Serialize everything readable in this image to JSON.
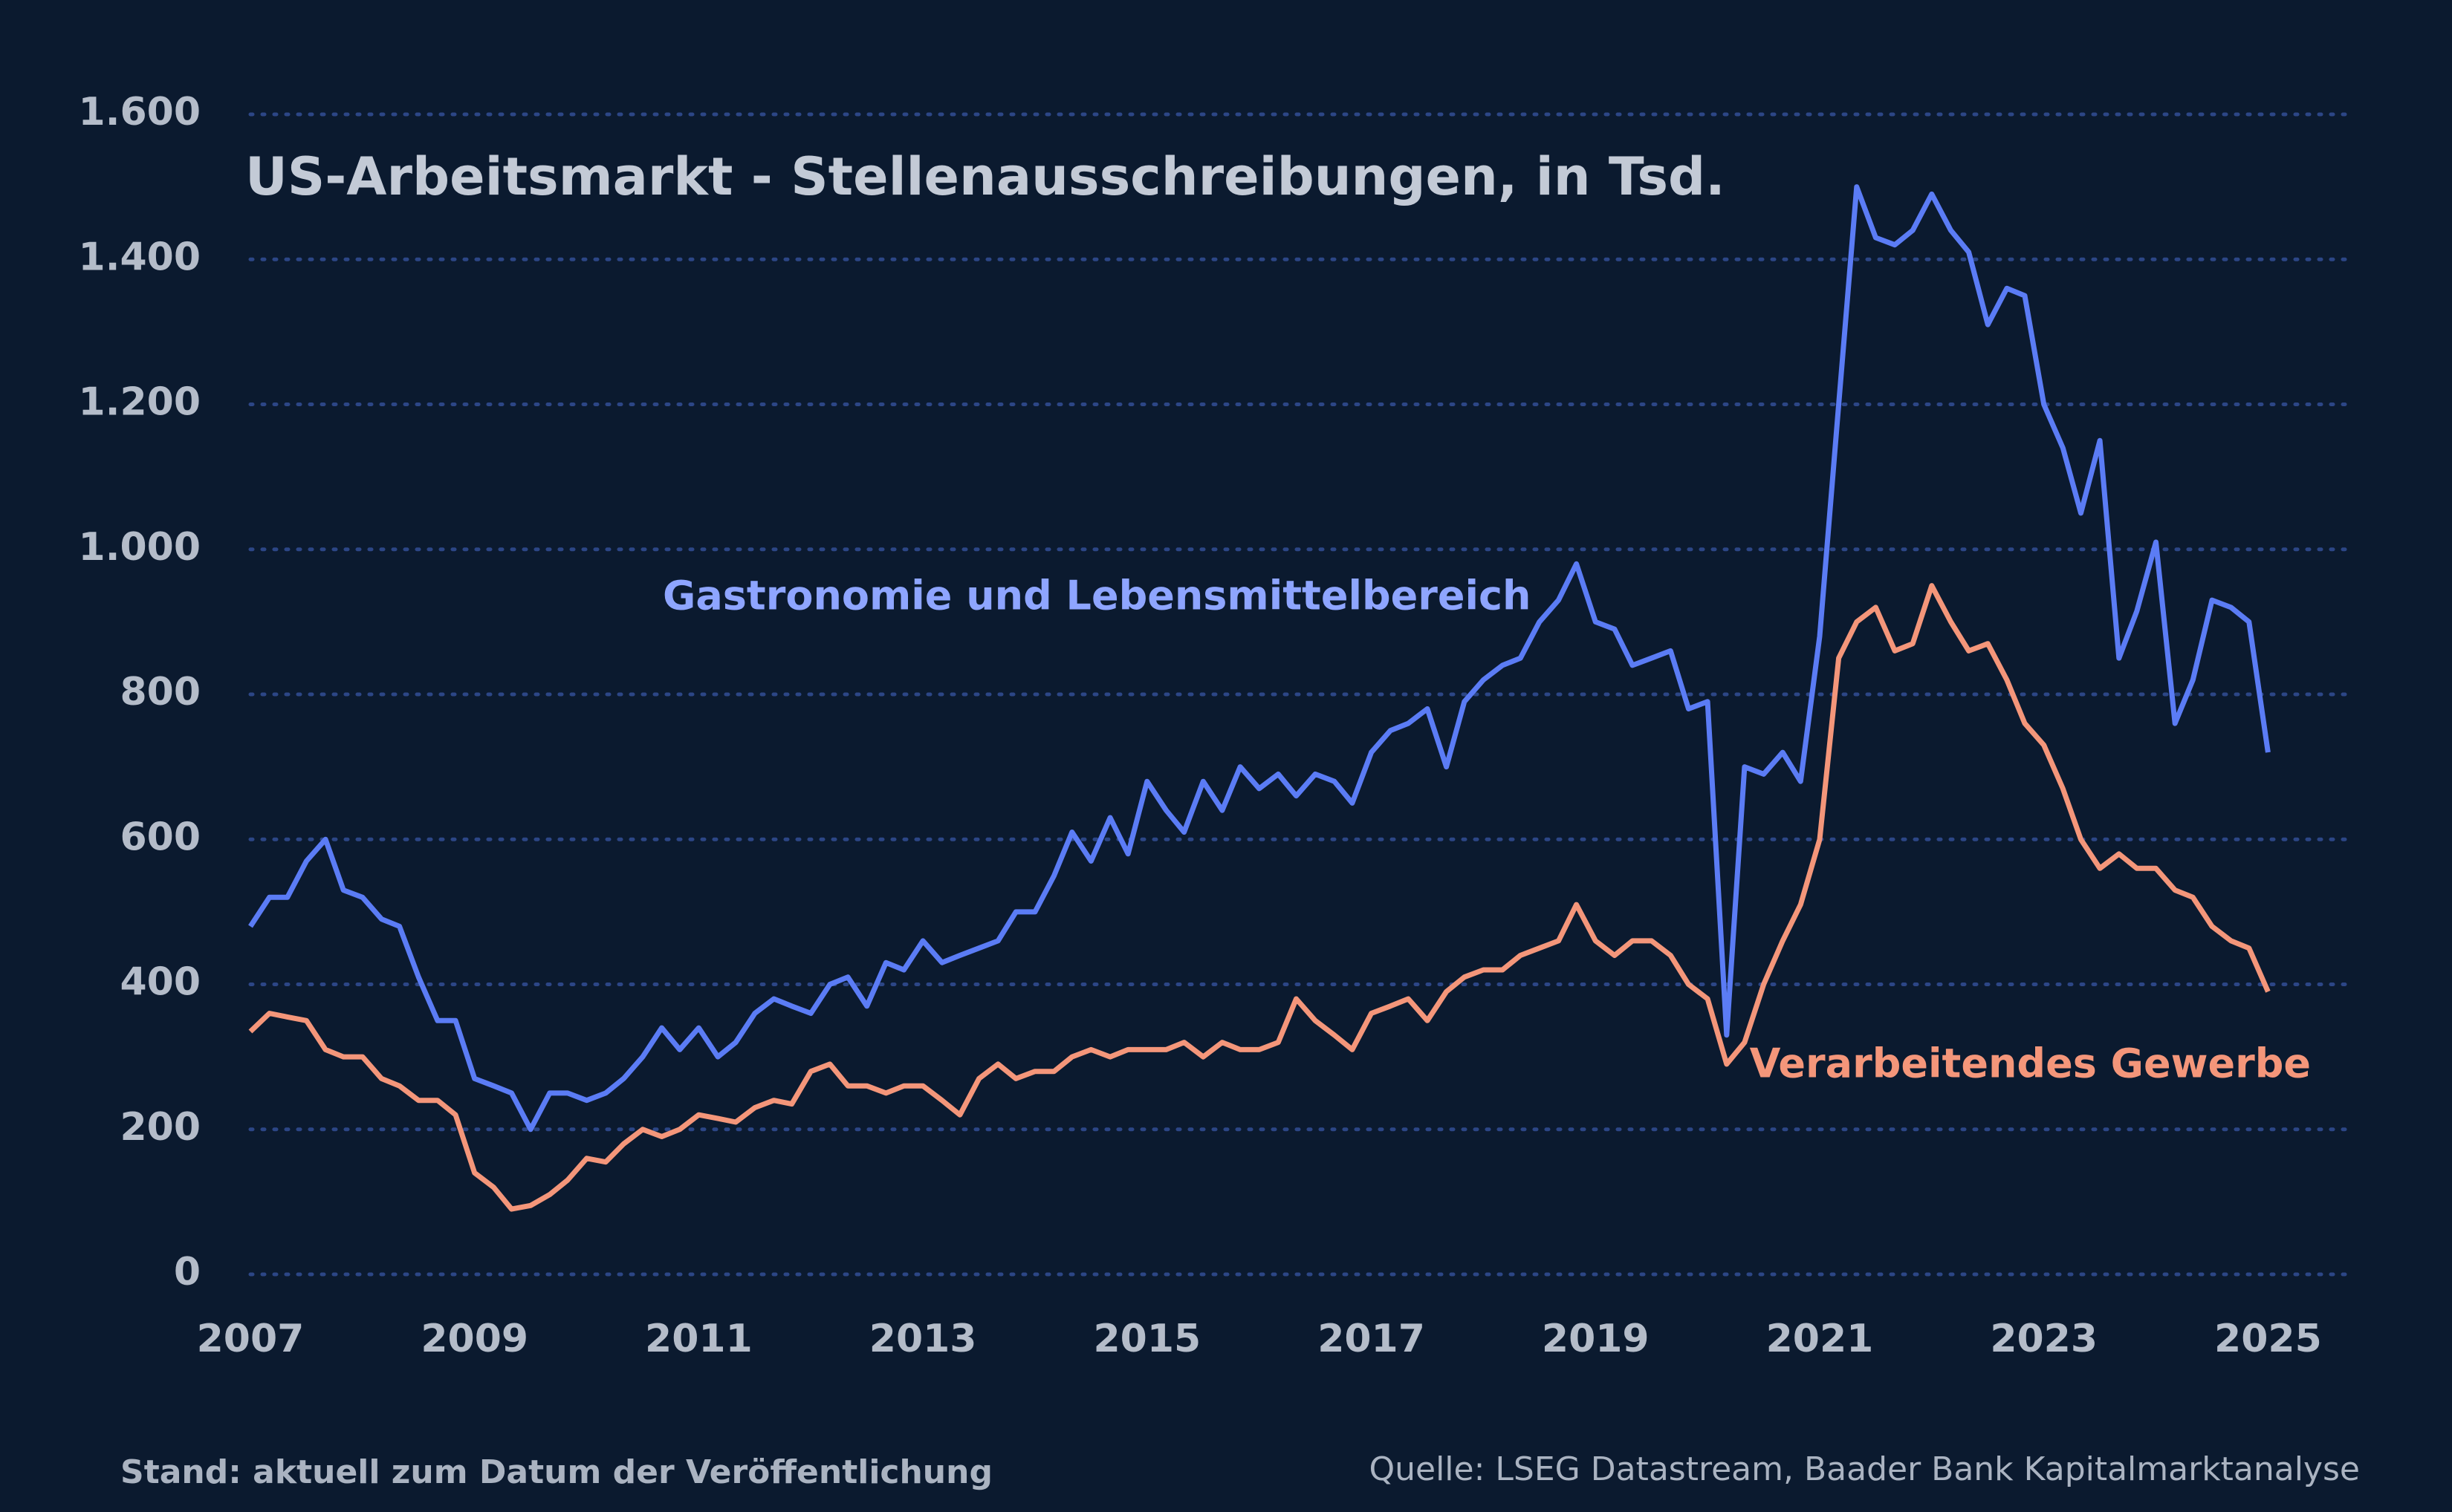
{
  "chart_data": {
    "type": "line",
    "title": "US-Arbeitsmarkt - Stellenausschreibungen, in Tsd.",
    "footnote": "Stand: aktuell zum Datum der Veröffentlichung",
    "source": "Quelle: LSEG Datastream, Baader Bank Kapitalmarktanalyse",
    "x": [
      2007,
      2007.17,
      2007.33,
      2007.5,
      2007.67,
      2007.83,
      2008,
      2008.17,
      2008.33,
      2008.5,
      2008.67,
      2008.83,
      2009,
      2009.17,
      2009.33,
      2009.5,
      2009.67,
      2009.83,
      2010,
      2010.17,
      2010.33,
      2010.5,
      2010.67,
      2010.83,
      2011,
      2011.17,
      2011.33,
      2011.5,
      2011.67,
      2011.83,
      2012,
      2012.17,
      2012.33,
      2012.5,
      2012.67,
      2012.83,
      2013,
      2013.17,
      2013.33,
      2013.5,
      2013.67,
      2013.83,
      2014,
      2014.17,
      2014.33,
      2014.5,
      2014.67,
      2014.83,
      2015,
      2015.17,
      2015.33,
      2015.5,
      2015.67,
      2015.83,
      2016,
      2016.17,
      2016.33,
      2016.5,
      2016.67,
      2016.83,
      2017,
      2017.17,
      2017.33,
      2017.5,
      2017.67,
      2017.83,
      2018,
      2018.17,
      2018.33,
      2018.5,
      2018.67,
      2018.83,
      2019,
      2019.17,
      2019.33,
      2019.5,
      2019.67,
      2019.83,
      2020,
      2020.17,
      2020.33,
      2020.5,
      2020.67,
      2020.83,
      2021,
      2021.17,
      2021.33,
      2021.5,
      2021.67,
      2021.83,
      2022,
      2022.17,
      2022.33,
      2022.5,
      2022.67,
      2022.83,
      2023,
      2023.17,
      2023.33,
      2023.5,
      2023.67,
      2023.83,
      2024,
      2024.17,
      2024.33,
      2024.5,
      2024.67,
      2024.83,
      2025
    ],
    "series": [
      {
        "name": "Gastronomie und Lebensmittelbereich",
        "color": "#5b7cf5",
        "values": [
          480,
          520,
          520,
          570,
          600,
          530,
          520,
          490,
          480,
          410,
          350,
          350,
          270,
          260,
          250,
          200,
          250,
          250,
          240,
          250,
          270,
          300,
          340,
          310,
          340,
          300,
          320,
          360,
          380,
          370,
          360,
          400,
          410,
          370,
          430,
          420,
          460,
          430,
          440,
          450,
          460,
          500,
          500,
          550,
          610,
          570,
          630,
          580,
          680,
          640,
          610,
          680,
          640,
          700,
          670,
          690,
          660,
          690,
          680,
          650,
          720,
          750,
          760,
          780,
          700,
          790,
          820,
          840,
          850,
          900,
          930,
          980,
          900,
          890,
          840,
          850,
          860,
          780,
          790,
          330,
          700,
          690,
          720,
          680,
          880,
          1200,
          1500,
          1430,
          1420,
          1440,
          1490,
          1440,
          1410,
          1310,
          1360,
          1350,
          1200,
          1140,
          1050,
          1150,
          850,
          915,
          1010,
          760,
          820,
          930,
          920,
          900,
          720
        ]
      },
      {
        "name": "Verarbeitendes Gewerbe",
        "color": "#f4967a",
        "values": [
          335,
          360,
          355,
          350,
          310,
          300,
          300,
          270,
          260,
          240,
          240,
          220,
          140,
          120,
          90,
          95,
          110,
          130,
          160,
          155,
          180,
          200,
          190,
          200,
          220,
          215,
          210,
          230,
          240,
          235,
          280,
          290,
          260,
          260,
          250,
          260,
          260,
          240,
          220,
          270,
          290,
          270,
          280,
          280,
          300,
          310,
          300,
          310,
          310,
          310,
          320,
          300,
          320,
          310,
          310,
          320,
          380,
          350,
          330,
          310,
          360,
          370,
          380,
          350,
          390,
          410,
          420,
          420,
          440,
          450,
          460,
          510,
          460,
          440,
          460,
          460,
          440,
          400,
          380,
          290,
          320,
          400,
          460,
          510,
          600,
          850,
          900,
          920,
          860,
          870,
          950,
          900,
          860,
          870,
          820,
          760,
          730,
          670,
          600,
          560,
          580,
          560,
          560,
          530,
          520,
          480,
          460,
          450,
          390
        ]
      }
    ],
    "xlim": [
      2007,
      2025.7
    ],
    "xticks": [
      2007,
      2009,
      2011,
      2013,
      2015,
      2017,
      2019,
      2021,
      2023,
      2025
    ],
    "ylim": [
      0,
      1600
    ],
    "yticks": [
      0,
      200,
      400,
      600,
      800,
      {
        "value": 1000,
        "label": "1.000"
      },
      {
        "value": 1200,
        "label": "1.200"
      },
      {
        "value": 1400,
        "label": "1.400"
      },
      {
        "value": 1600,
        "label": "1.600"
      }
    ],
    "grid": true
  }
}
